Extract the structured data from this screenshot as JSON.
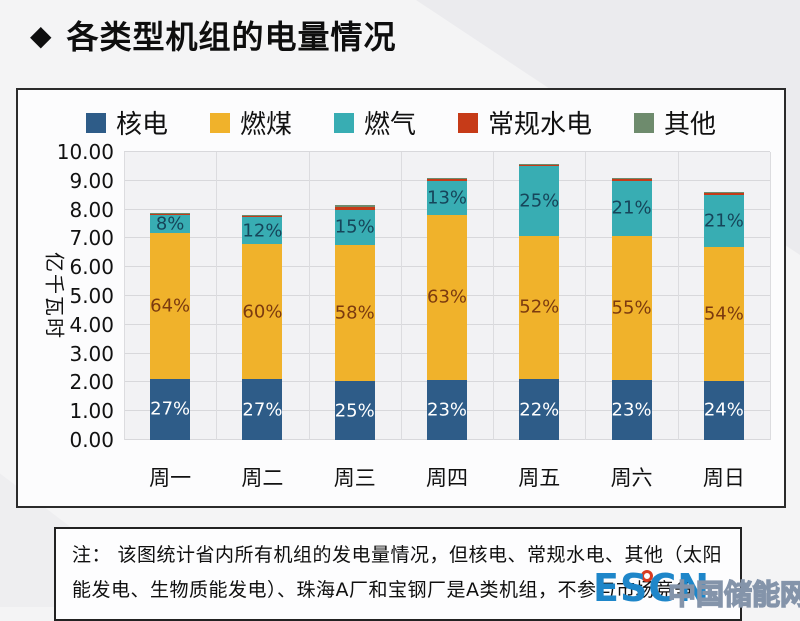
{
  "header": {
    "bullet": "◆",
    "title": "各类型机组的电量情况"
  },
  "chart_data": {
    "type": "bar",
    "subtype": "stacked",
    "categories": [
      "周一",
      "周二",
      "周三",
      "周四",
      "周五",
      "周六",
      "周日"
    ],
    "series": [
      {
        "name": "核电",
        "color": "#2E5C88",
        "label_color": "#ffffff",
        "values": [
          2.13,
          2.11,
          2.04,
          2.09,
          2.11,
          2.09,
          2.06
        ],
        "pct_labels": [
          "27%",
          "27%",
          "25%",
          "23%",
          "22%",
          "23%",
          "24%"
        ]
      },
      {
        "name": "燃煤",
        "color": "#F0B22B",
        "label_color": "#7b3a0f",
        "values": [
          5.06,
          4.68,
          4.73,
          5.73,
          4.99,
          5.01,
          4.64
        ],
        "pct_labels": [
          "64%",
          "60%",
          "58%",
          "63%",
          "52%",
          "55%",
          "54%"
        ]
      },
      {
        "name": "燃气",
        "color": "#38ADB3",
        "label_color": "#16455a",
        "values": [
          0.63,
          0.94,
          1.22,
          1.18,
          2.4,
          1.91,
          1.81
        ],
        "pct_labels": [
          "8%",
          "12%",
          "15%",
          "13%",
          "25%",
          "21%",
          "21%"
        ]
      },
      {
        "name": "常规水电",
        "color": "#C63B18",
        "label_color": "#ffffff",
        "values": [
          0.05,
          0.04,
          0.1,
          0.06,
          0.07,
          0.05,
          0.06
        ],
        "pct_labels": [
          "",
          "",
          "",
          "",
          "",
          "",
          ""
        ]
      },
      {
        "name": "其他",
        "color": "#6E8B6D",
        "label_color": "#ffffff",
        "values": [
          0.03,
          0.03,
          0.06,
          0.04,
          0.03,
          0.04,
          0.03
        ],
        "pct_labels": [
          "",
          "",
          "",
          "",
          "",
          "",
          ""
        ]
      }
    ],
    "totals": [
      7.9,
      7.8,
      8.15,
      9.1,
      9.6,
      9.1,
      8.6
    ],
    "ylabel": "亿千瓦时",
    "ylim": [
      0,
      10
    ],
    "ytick_step": 1,
    "ytick_labels": [
      "0.00",
      "1.00",
      "2.00",
      "3.00",
      "4.00",
      "5.00",
      "6.00",
      "7.00",
      "8.00",
      "9.00",
      "10.00"
    ],
    "grid": true,
    "legend_position": "top"
  },
  "note": {
    "text": "注： 该图统计省内所有机组的发电量情况，但核电、常规水电、其他（太阳能发电、生物质能发电）、珠海A厂和宝钢厂是A类机组，不参与市场竞争。"
  },
  "watermark": {
    "escn": "ESCN",
    "site": "中国储能网",
    "accent": "#1e86c9"
  }
}
